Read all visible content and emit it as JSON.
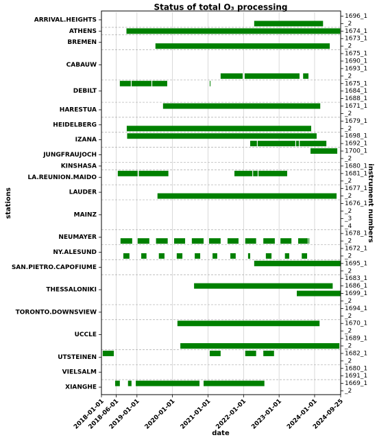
{
  "chart_data": {
    "type": "timeline",
    "title": "Status of total O₃ processing",
    "x_label": "date",
    "y_label": "stations",
    "y2_label": "instrument numbers",
    "color": "#008000",
    "grid": true,
    "xlim": [
      "2018-01-01",
      "2024-09-25"
    ],
    "xticks": [
      "2018-01-01",
      "2018-06-01",
      "2019-01-01",
      "2020-01-01",
      "2021-01-01",
      "2022-01-01",
      "2023-01-01",
      "2024-01-01",
      "2024-09-25"
    ],
    "stations": [
      {
        "name": "ARRIVAL.HEIGHTS",
        "instruments": [
          {
            "label": "1696_1",
            "segments": []
          },
          {
            "label": "_2",
            "segments": [
              [
                "2022-04-20",
                "2024-03-28"
              ]
            ]
          }
        ]
      },
      {
        "name": "ATHENS",
        "instruments": [
          {
            "label": "1674_1",
            "segments": [
              [
                "2018-09-15",
                "2024-09-20"
              ]
            ]
          }
        ]
      },
      {
        "name": "BREMEN",
        "instruments": [
          {
            "label": "1673_1",
            "segments": []
          },
          {
            "label": "_2",
            "segments": [
              [
                "2019-07-10",
                "2024-06-05"
              ]
            ]
          }
        ]
      },
      {
        "name": "CABAUW",
        "instruments": [
          {
            "label": "1675_1",
            "segments": []
          },
          {
            "label": "1690_1",
            "segments": []
          },
          {
            "label": "1693_1",
            "segments": []
          },
          {
            "label": "_2",
            "segments": [
              [
                "2021-05-10",
                "2021-12-23"
              ],
              [
                "2022-01-12",
                "2023-07-30"
              ],
              [
                "2023-09-05",
                "2023-10-30"
              ]
            ]
          }
        ]
      },
      {
        "name": "DEBILT",
        "instruments": [
          {
            "label": "1675_1",
            "segments": [
              [
                "2018-07-09",
                "2018-10-30"
              ],
              [
                "2018-11-07",
                "2019-05-30"
              ],
              [
                "2019-06-07",
                "2019-11-08"
              ],
              [
                "2021-01-18",
                "2021-01-25"
              ]
            ]
          },
          {
            "label": "1684_1",
            "segments": []
          },
          {
            "label": "1688_1",
            "segments": []
          }
        ]
      },
      {
        "name": "HARESTUA",
        "instruments": [
          {
            "label": "1671_1",
            "segments": [
              [
                "2019-09-26",
                "2024-02-28"
              ]
            ]
          },
          {
            "label": "_2",
            "segments": []
          }
        ]
      },
      {
        "name": "HEIDELBERG",
        "instruments": [
          {
            "label": "1679_1",
            "segments": []
          },
          {
            "label": "_2",
            "segments": [
              [
                "2018-09-18",
                "2023-11-27"
              ]
            ]
          }
        ]
      },
      {
        "name": "IZANA",
        "instruments": [
          {
            "label": "1698_1",
            "segments": [
              [
                "2018-09-22",
                "2024-01-22"
              ]
            ]
          },
          {
            "label": "1692_1",
            "segments": [
              [
                "2022-03-10",
                "2022-05-18"
              ],
              [
                "2022-05-26",
                "2023-06-17"
              ],
              [
                "2023-06-25",
                "2023-07-24"
              ],
              [
                "2023-08-01",
                "2024-05-01"
              ]
            ]
          }
        ]
      },
      {
        "name": "JUNGFRAUJOCH",
        "instruments": [
          {
            "label": "1700_1",
            "segments": [
              [
                "2023-11-20",
                "2024-08-21"
              ]
            ]
          },
          {
            "label": "_2",
            "segments": []
          }
        ]
      },
      {
        "name": "KINSHASA",
        "instruments": [
          {
            "label": "1680_1",
            "segments": []
          }
        ]
      },
      {
        "name": "LA.REUNION.MAIDO",
        "instruments": [
          {
            "label": "1681_1",
            "segments": [
              [
                "2018-06-18",
                "2019-01-08"
              ],
              [
                "2019-01-20",
                "2019-11-20"
              ],
              [
                "2021-09-29",
                "2022-04-01"
              ],
              [
                "2022-04-09",
                "2022-05-26"
              ],
              [
                "2022-06-03",
                "2023-03-25"
              ]
            ]
          },
          {
            "label": "_2",
            "segments": []
          }
        ]
      },
      {
        "name": "LAUDER",
        "instruments": [
          {
            "label": "1677_1",
            "segments": []
          },
          {
            "label": "_2",
            "segments": [
              [
                "2019-07-31",
                "2024-08-14"
              ]
            ]
          }
        ]
      },
      {
        "name": "MAINZ",
        "instruments": [
          {
            "label": "1676_1",
            "segments": []
          },
          {
            "label": "_2",
            "segments": []
          },
          {
            "label": "_3",
            "segments": []
          },
          {
            "label": "_4",
            "segments": []
          }
        ]
      },
      {
        "name": "NEUMAYER",
        "instruments": [
          {
            "label": "1678_1",
            "segments": []
          },
          {
            "label": "_2",
            "segments": [
              [
                "2018-07-16",
                "2018-11-13"
              ],
              [
                "2019-01-08",
                "2019-05-08"
              ],
              [
                "2019-07-16",
                "2019-11-13"
              ],
              [
                "2020-01-18",
                "2020-05-10"
              ],
              [
                "2020-07-18",
                "2020-11-16"
              ],
              [
                "2021-01-11",
                "2021-05-10"
              ],
              [
                "2021-07-20",
                "2021-11-10"
              ],
              [
                "2022-01-18",
                "2022-05-10"
              ],
              [
                "2022-07-23",
                "2022-11-18"
              ],
              [
                "2023-01-15",
                "2023-05-08"
              ],
              [
                "2023-07-16",
                "2023-10-23"
              ],
              [
                "2023-10-30",
                "2023-11-07"
              ]
            ]
          }
        ]
      },
      {
        "name": "NY.ALESUND",
        "instruments": [
          {
            "label": "1672_1",
            "segments": []
          },
          {
            "label": "_2",
            "segments": [
              [
                "2018-08-14",
                "2018-10-16"
              ],
              [
                "2019-02-14",
                "2019-04-09"
              ],
              [
                "2019-08-14",
                "2019-10-11"
              ],
              [
                "2020-02-14",
                "2020-04-12"
              ],
              [
                "2020-08-17",
                "2020-10-12"
              ],
              [
                "2021-02-16",
                "2021-04-05"
              ],
              [
                "2021-08-18",
                "2021-10-12"
              ],
              [
                "2022-02-16",
                "2022-03-10"
              ],
              [
                "2022-08-18",
                "2022-10-15"
              ],
              [
                "2023-03-02",
                "2023-04-15"
              ],
              [
                "2023-08-22",
                "2023-10-16"
              ]
            ]
          }
        ]
      },
      {
        "name": "SAN.PIETRO.CAPOFIUME",
        "instruments": [
          {
            "label": "1695_1",
            "segments": [
              [
                "2022-04-20",
                "2024-09-25"
              ]
            ]
          },
          {
            "label": "_2",
            "segments": []
          }
        ]
      },
      {
        "name": "THESSALONIKI",
        "instruments": [
          {
            "label": "1683_1",
            "segments": []
          },
          {
            "label": "1686_1",
            "segments": [
              [
                "2020-08-10",
                "2024-07-05"
              ]
            ]
          },
          {
            "label": "1699_1",
            "segments": [
              [
                "2023-07-02",
                "2024-09-25"
              ]
            ]
          },
          {
            "label": "_2",
            "segments": []
          }
        ]
      },
      {
        "name": "TORONTO.DOWNSVIEW",
        "instruments": [
          {
            "label": "1694_1",
            "segments": []
          },
          {
            "label": "_2",
            "segments": []
          }
        ]
      },
      {
        "name": "UCCLE",
        "instruments": [
          {
            "label": "1670_1",
            "segments": [
              [
                "2020-02-21",
                "2024-02-21"
              ]
            ]
          },
          {
            "label": "_2",
            "segments": []
          },
          {
            "label": "1689_1",
            "segments": []
          },
          {
            "label": "_2",
            "segments": [
              [
                "2020-03-22",
                "2024-09-12"
              ]
            ]
          }
        ]
      },
      {
        "name": "UTSTEINEN",
        "instruments": [
          {
            "label": "1682_1",
            "segments": [
              [
                "2018-01-14",
                "2018-05-08"
              ],
              [
                "2021-01-18",
                "2021-05-10"
              ],
              [
                "2022-01-18",
                "2022-05-10"
              ],
              [
                "2022-07-23",
                "2022-11-10"
              ]
            ]
          },
          {
            "label": "_2",
            "segments": []
          }
        ]
      },
      {
        "name": "VIELSALM",
        "instruments": [
          {
            "label": "1680_1",
            "segments": []
          },
          {
            "label": "1691_1",
            "segments": []
          }
        ]
      },
      {
        "name": "XIANGHE",
        "instruments": [
          {
            "label": "1669_1",
            "segments": [
              [
                "2018-05-22",
                "2018-07-09"
              ],
              [
                "2018-10-01",
                "2018-11-06"
              ],
              [
                "2018-12-20",
                "2020-10-05"
              ],
              [
                "2020-11-16",
                "2022-08-03"
              ]
            ]
          },
          {
            "label": "_2",
            "segments": []
          }
        ]
      }
    ]
  }
}
